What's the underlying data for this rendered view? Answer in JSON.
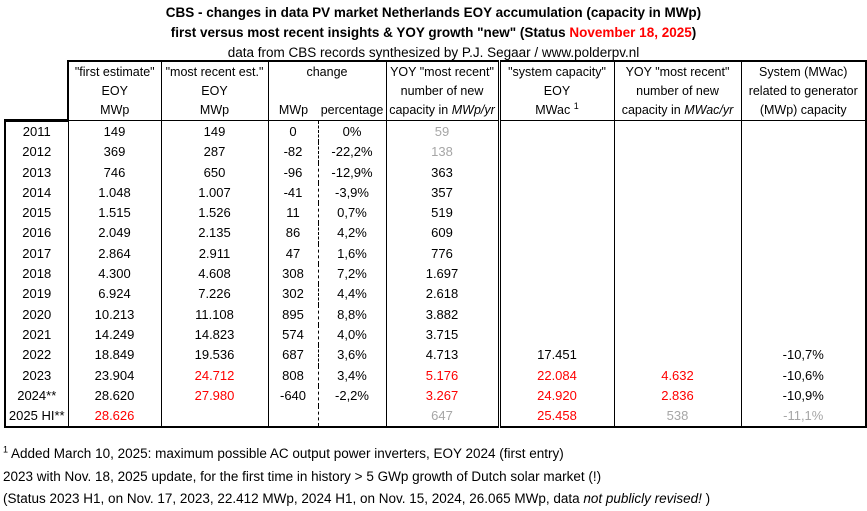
{
  "title": {
    "line1": "CBS - changes in data PV market Netherlands EOY accumulation (capacity in MWp)",
    "line2_prefix": "first versus most recent insights & YOY growth \"new\" (Status ",
    "line2_date": "November 18, 2025",
    "line2_suffix": ")",
    "line3": "data from CBS records synthesized by P.J. Segaar / www.polderpv.nl"
  },
  "colors": {
    "highlight_red": "#ff0000",
    "muted_gray": "#a6a6a6",
    "text_black": "#000000"
  },
  "header": {
    "first_estimate": {
      "l1": "\"first estimate\"",
      "l2": "EOY",
      "l3": "MWp"
    },
    "most_recent": {
      "l1": "\"most recent est.\"",
      "l2": "EOY",
      "l3": "MWp"
    },
    "change": {
      "l1": "change",
      "sub_mwp": "MWp",
      "sub_pct": "percentage"
    },
    "yoy_mwp": {
      "l1": "YOY \"most recent\"",
      "l2": "number  of new",
      "l3_prefix": "capacity in ",
      "l3_unit": "MWp/yr"
    },
    "system": {
      "l1": "\"system capacity\"",
      "l2": "EOY",
      "l3": "MWac",
      "l3_sup": "1"
    },
    "yoy_mwac": {
      "l1": "YOY \"most recent\"",
      "l2": "number of new",
      "l3_prefix": "capacity in ",
      "l3_unit": "MWac/yr"
    },
    "ratio": {
      "l1": "System (MWac)",
      "l2": "related to generator",
      "l3": "(MWp) capacity"
    }
  },
  "chart_data": {
    "type": "table",
    "title": "CBS - changes in data PV market Netherlands EOY accumulation (capacity in MWp)",
    "columns": [
      "year",
      "first estimate EOY MWp",
      "most recent est. EOY MWp",
      "change MWp",
      "change percentage",
      "YOY most recent number of new capacity in MWp/yr",
      "system capacity EOY MWac",
      "YOY most recent number of new capacity in MWac/yr",
      "System (MWac) related to generator (MWp) capacity"
    ],
    "rows": [
      [
        "2011",
        "149",
        "149",
        "0",
        "0%",
        "59",
        "",
        "",
        ""
      ],
      [
        "2012",
        "369",
        "287",
        "-82",
        "-22,2%",
        "138",
        "",
        "",
        ""
      ],
      [
        "2013",
        "746",
        "650",
        "-96",
        "-12,9%",
        "363",
        "",
        "",
        ""
      ],
      [
        "2014",
        "1.048",
        "1.007",
        "-41",
        "-3,9%",
        "357",
        "",
        "",
        ""
      ],
      [
        "2015",
        "1.515",
        "1.526",
        "11",
        "0,7%",
        "519",
        "",
        "",
        ""
      ],
      [
        "2016",
        "2.049",
        "2.135",
        "86",
        "4,2%",
        "609",
        "",
        "",
        ""
      ],
      [
        "2017",
        "2.864",
        "2.911",
        "47",
        "1,6%",
        "776",
        "",
        "",
        ""
      ],
      [
        "2018",
        "4.300",
        "4.608",
        "308",
        "7,2%",
        "1.697",
        "",
        "",
        ""
      ],
      [
        "2019",
        "6.924",
        "7.226",
        "302",
        "4,4%",
        "2.618",
        "",
        "",
        ""
      ],
      [
        "2020",
        "10.213",
        "11.108",
        "895",
        "8,8%",
        "3.882",
        "",
        "",
        ""
      ],
      [
        "2021",
        "14.249",
        "14.823",
        "574",
        "4,0%",
        "3.715",
        "",
        "",
        ""
      ],
      [
        "2022",
        "18.849",
        "19.536",
        "687",
        "3,6%",
        "4.713",
        "17.451",
        "",
        "-10,7%"
      ],
      [
        "2023",
        "23.904",
        "24.712",
        "808",
        "3,4%",
        "5.176",
        "22.084",
        "4.632",
        "-10,6%"
      ],
      [
        "2024**",
        "28.620",
        "27.980",
        "-640",
        "-2,2%",
        "3.267",
        "24.920",
        "2.836",
        "-10,9%"
      ],
      [
        "2025 HI**",
        "28.626",
        "",
        "",
        "",
        "647",
        "25.458",
        "538",
        "-11,1%"
      ]
    ],
    "row_styles": [
      [
        "",
        "",
        "",
        "",
        "",
        "gray",
        "",
        "",
        ""
      ],
      [
        "",
        "",
        "",
        "",
        "",
        "gray",
        "",
        "",
        ""
      ],
      [
        "",
        "",
        "",
        "",
        "",
        "",
        "",
        "",
        ""
      ],
      [
        "",
        "",
        "",
        "",
        "",
        "",
        "",
        "",
        ""
      ],
      [
        "",
        "",
        "",
        "",
        "",
        "",
        "",
        "",
        ""
      ],
      [
        "",
        "",
        "",
        "",
        "",
        "",
        "",
        "",
        ""
      ],
      [
        "",
        "",
        "",
        "",
        "",
        "",
        "",
        "",
        ""
      ],
      [
        "",
        "",
        "",
        "",
        "",
        "",
        "",
        "",
        ""
      ],
      [
        "",
        "",
        "",
        "",
        "",
        "",
        "",
        "",
        ""
      ],
      [
        "",
        "",
        "",
        "",
        "",
        "",
        "",
        "",
        ""
      ],
      [
        "",
        "",
        "",
        "",
        "",
        "",
        "",
        "",
        ""
      ],
      [
        "",
        "",
        "",
        "",
        "",
        "",
        "",
        "",
        ""
      ],
      [
        "",
        "",
        "red",
        "",
        "",
        "red",
        "red",
        "red",
        ""
      ],
      [
        "",
        "",
        "red",
        "",
        "",
        "red",
        "red",
        "red",
        ""
      ],
      [
        "",
        "red",
        "",
        "",
        "",
        "gray",
        "red",
        "gray",
        "gray"
      ]
    ]
  },
  "footnotes": {
    "line1_sup": "1",
    "line1_text": " Added March 10, 2025: maximum possible AC output power inverters, EOY 2024 (first entry)",
    "line2": "2023 with Nov. 18, 2025 update, for the first time in history > 5 GWp growth of Dutch solar market (!)",
    "line3_prefix": "(Status 2023 H1, on Nov. 17, 2023, 22.412 MWp,  2024 H1, on Nov. 15, 2024, 26.065 MWp, data ",
    "line3_italic": "not publicly revised!",
    "line3_suffix": " )"
  }
}
